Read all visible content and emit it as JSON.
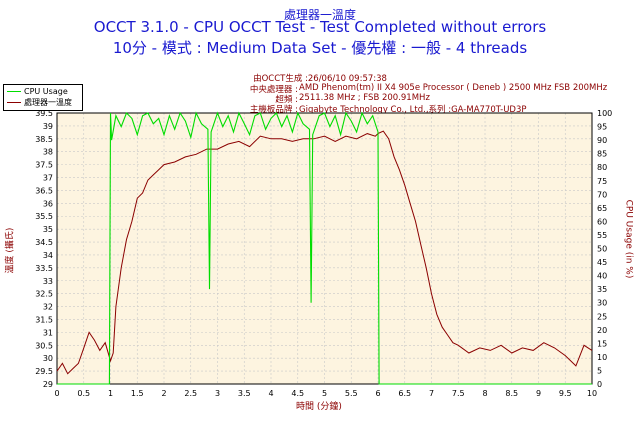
{
  "header": {
    "title1": "處理器一溫度",
    "title2": "OCCT 3.1.0 - CPU OCCT Test - Test Completed without errors",
    "title3": "10分 - 模式 : Medium Data Set - 優先權 : 一般 - 4 threads"
  },
  "info": {
    "generated": "由OCCT生成 :26/06/10 09:57:38",
    "cpu_label": "中央處理器 :",
    "cpu_value": "AMD Phenom(tm) II X4 905e Processor ( Deneb ) 2500 MHz FSB 200MHz",
    "clock_label": "超頻 :",
    "clock_value": "2511.38 MHz ; FSB 200.91MHz",
    "board_label": "主機板品牌 :",
    "board_value": "Gigabyte Technology Co., Ltd.,系列 :GA-MA770T-UD3P"
  },
  "legend": {
    "cpu_usage": "CPU Usage",
    "temp": "處理器一溫度"
  },
  "colors": {
    "cpu": "#00dd00",
    "temp": "#8b0000",
    "plot_bg": "#fdf4e0",
    "grid": "#c8c8c8",
    "title": "#1a1ad0"
  },
  "chart_data": {
    "type": "line",
    "xlabel": "時間 (分鐘)",
    "ylabel": "溫度 (攝氏)",
    "y2label": "CPU Usage (in %)",
    "xlim": [
      0,
      10
    ],
    "ylim": [
      29,
      39.5
    ],
    "y2lim": [
      0,
      100
    ],
    "x_ticks": [
      0,
      0.5,
      1,
      1.5,
      2,
      2.5,
      3,
      3.5,
      4,
      4.5,
      5,
      5.5,
      6,
      6.5,
      7,
      7.5,
      8,
      8.5,
      9,
      9.5,
      10
    ],
    "y_ticks": [
      29,
      29.5,
      30,
      30.5,
      31,
      31.5,
      32,
      32.5,
      33,
      33.5,
      34,
      34.5,
      35,
      35.5,
      36,
      36.5,
      37,
      37.5,
      38,
      38.5,
      39,
      39.5
    ],
    "y2_ticks": [
      0,
      5,
      10,
      15,
      20,
      25,
      30,
      35,
      40,
      45,
      50,
      55,
      60,
      65,
      70,
      75,
      80,
      85,
      90,
      95,
      100
    ],
    "series": [
      {
        "name": "處理器一溫度",
        "axis": "left",
        "x": [
          0,
          0.1,
          0.2,
          0.3,
          0.4,
          0.5,
          0.6,
          0.7,
          0.8,
          0.9,
          1.0,
          1.05,
          1.1,
          1.2,
          1.3,
          1.4,
          1.5,
          1.6,
          1.7,
          1.8,
          1.9,
          2.0,
          2.2,
          2.4,
          2.6,
          2.8,
          3.0,
          3.2,
          3.4,
          3.6,
          3.8,
          4.0,
          4.2,
          4.4,
          4.6,
          4.8,
          5.0,
          5.2,
          5.4,
          5.6,
          5.8,
          5.95,
          6.0,
          6.1,
          6.2,
          6.3,
          6.4,
          6.5,
          6.6,
          6.7,
          6.8,
          6.9,
          7.0,
          7.1,
          7.2,
          7.3,
          7.4,
          7.5,
          7.7,
          7.9,
          8.1,
          8.3,
          8.5,
          8.7,
          8.9,
          9.1,
          9.3,
          9.5,
          9.7,
          9.85,
          10.0
        ],
        "values": [
          29.5,
          29.8,
          29.4,
          29.6,
          29.8,
          30.4,
          31.0,
          30.7,
          30.3,
          30.6,
          29.9,
          30.2,
          32.0,
          33.5,
          34.6,
          35.3,
          36.2,
          36.4,
          36.9,
          37.1,
          37.3,
          37.5,
          37.6,
          37.8,
          37.9,
          38.1,
          38.1,
          38.3,
          38.4,
          38.2,
          38.6,
          38.5,
          38.5,
          38.4,
          38.5,
          38.5,
          38.6,
          38.4,
          38.6,
          38.5,
          38.7,
          38.6,
          38.7,
          38.8,
          38.5,
          37.8,
          37.3,
          36.7,
          36.0,
          35.3,
          34.4,
          33.5,
          32.5,
          31.7,
          31.2,
          30.9,
          30.6,
          30.5,
          30.2,
          30.4,
          30.3,
          30.5,
          30.2,
          30.4,
          30.3,
          30.6,
          30.4,
          30.1,
          29.7,
          30.5,
          30.3
        ]
      },
      {
        "name": "CPU Usage",
        "axis": "right",
        "x": [
          0,
          0.98,
          1.0,
          1.02,
          1.1,
          1.2,
          1.3,
          1.4,
          1.5,
          1.6,
          1.7,
          1.8,
          1.9,
          2.0,
          2.1,
          2.2,
          2.3,
          2.4,
          2.5,
          2.6,
          2.7,
          2.82,
          2.85,
          2.88,
          3.0,
          3.1,
          3.2,
          3.3,
          3.4,
          3.5,
          3.6,
          3.7,
          3.8,
          3.9,
          4.0,
          4.1,
          4.2,
          4.3,
          4.4,
          4.5,
          4.6,
          4.72,
          4.75,
          4.78,
          4.9,
          5.0,
          5.1,
          5.2,
          5.3,
          5.4,
          5.5,
          5.6,
          5.7,
          5.8,
          5.9,
          6.0,
          6.02,
          6.05,
          10.0
        ],
        "values": [
          0,
          0,
          100,
          90,
          99,
          95,
          100,
          98,
          92,
          99,
          100,
          96,
          98,
          92,
          99,
          94,
          100,
          97,
          91,
          100,
          96,
          94,
          35,
          93,
          100,
          95,
          99,
          93,
          100,
          96,
          92,
          99,
          100,
          94,
          98,
          100,
          95,
          99,
          93,
          100,
          96,
          94,
          30,
          92,
          99,
          100,
          95,
          99,
          92,
          100,
          97,
          93,
          100,
          96,
          99,
          93,
          0,
          0,
          0
        ]
      }
    ]
  }
}
